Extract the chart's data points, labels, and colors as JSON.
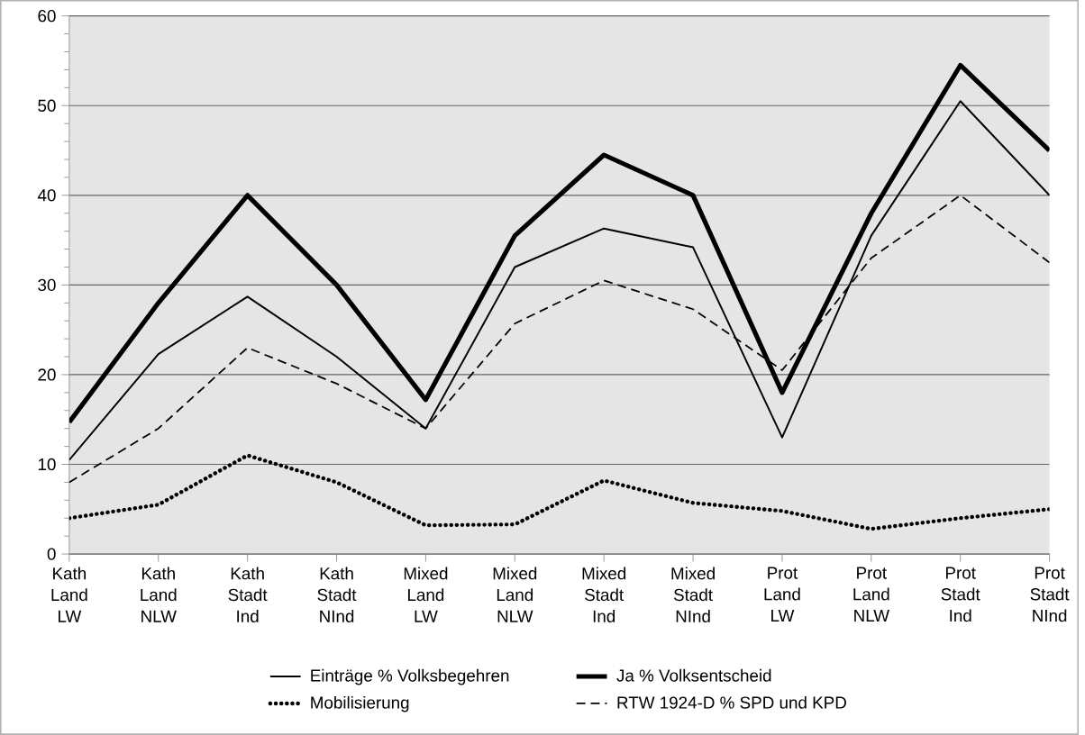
{
  "chart_data": {
    "type": "line",
    "categories": [
      "Kath Land LW",
      "Kath Land NLW",
      "Kath Stadt Ind",
      "Kath Stadt NInd",
      "Mixed Land LW",
      "Mixed Land NLW",
      "Mixed Stadt Ind",
      "Mixed Stadt NInd",
      "Prot Land LW",
      "Prot Land NLW",
      "Prot Stadt Ind",
      "Prot Stadt NInd"
    ],
    "series": [
      {
        "name": "Einträge % Volksbegehren",
        "color": "#000000",
        "line_style": "solid",
        "values": [
          10.5,
          22.3,
          28.7,
          22,
          14,
          32,
          36.3,
          34.2,
          13,
          35.5,
          50.5,
          40
        ]
      },
      {
        "name": "Ja % Volksentscheid",
        "color": "#000000",
        "line_style": "solid",
        "values": [
          14.7,
          28,
          40,
          30,
          17.2,
          35.5,
          44.5,
          40,
          18,
          38,
          54.5,
          45
        ]
      },
      {
        "name": "Mobilisierung",
        "color": "#000000",
        "line_style": "dotted",
        "values": [
          4,
          5.5,
          11,
          8,
          3.2,
          3.3,
          8.2,
          5.7,
          4.8,
          2.8,
          4,
          5
        ]
      },
      {
        "name": "RTW 1924-D % SPD und KPD",
        "color": "#000000",
        "line_style": "dashed",
        "values": [
          8,
          14,
          23,
          19,
          14,
          25.7,
          30.5,
          27.3,
          20.5,
          33,
          40,
          32.5
        ]
      }
    ],
    "ylim": [
      0,
      60
    ],
    "yticks": [
      0,
      10,
      20,
      30,
      40,
      50,
      60
    ],
    "grid": "y",
    "legend": "bottom",
    "marker": "none"
  }
}
